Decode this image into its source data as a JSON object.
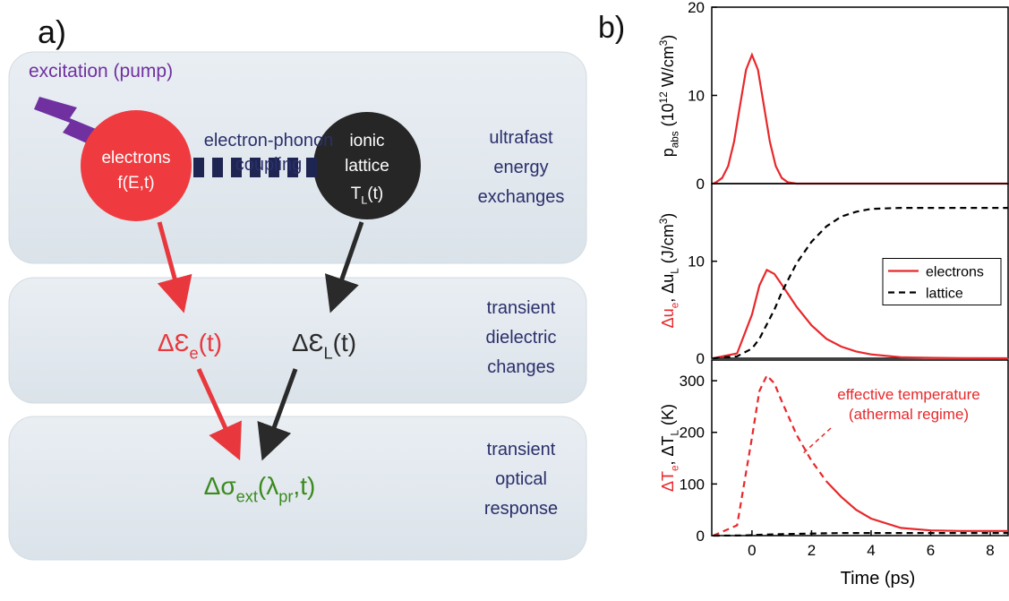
{
  "diagram": {
    "label": "a)",
    "excitation": "excitation (pump)",
    "coupling": [
      "electron-phonon",
      "coupling"
    ],
    "electrons": [
      "electrons",
      "f(E,t)"
    ],
    "lattice": [
      "ionic",
      "lattice"
    ],
    "lattice_temp": [
      {
        "t": "T"
      },
      {
        "t": "L",
        "sub": true
      },
      {
        "t": "(t)"
      }
    ],
    "rows": [
      [
        "ultrafast",
        "energy",
        "exchanges"
      ],
      [
        "transient",
        "dielectric",
        "changes"
      ],
      [
        "transient",
        "optical",
        "response"
      ]
    ],
    "eps_e": [
      {
        "t": "ΔƐ"
      },
      {
        "t": "e",
        "sub": true
      },
      {
        "t": "(t)"
      }
    ],
    "eps_l": [
      {
        "t": "ΔƐ"
      },
      {
        "t": "L",
        "sub": true
      },
      {
        "t": "(t)"
      }
    ],
    "sigma": [
      {
        "t": "Δσ"
      },
      {
        "t": "ext",
        "sub": true
      },
      {
        "t": "(λ"
      },
      {
        "t": "pr",
        "sub": true
      },
      {
        "t": ",t)"
      }
    ]
  },
  "panel_label": "b)",
  "chart_data": [
    {
      "type": "line",
      "ylabel": [
        {
          "t": "p"
        },
        {
          "t": "abs",
          "sub": true
        },
        {
          "t": " (10"
        },
        {
          "t": "12",
          "sup": true
        },
        {
          "t": " W/cm"
        },
        {
          "t": "3",
          "sup": true
        },
        {
          "t": ")"
        }
      ],
      "x": [
        -1.3,
        -1.2,
        -1,
        -0.8,
        -0.6,
        -0.4,
        -0.2,
        0,
        0.2,
        0.4,
        0.6,
        0.8,
        1,
        1.2,
        1.5,
        8.6
      ],
      "series": [
        {
          "color": "#e8282b",
          "dash": false,
          "values": [
            0,
            0.16,
            0.64,
            1.98,
            4.74,
            8.86,
            12.9,
            14.6,
            12.9,
            8.86,
            4.74,
            1.98,
            0.64,
            0.16,
            0,
            0
          ]
        }
      ],
      "xlim": [
        -1.35,
        8.6
      ],
      "ylim": [
        0,
        20
      ],
      "yticks": [
        0,
        10,
        20
      ]
    },
    {
      "type": "line",
      "ylabel": [
        {
          "t": "Δu",
          "color": "#e8282b"
        },
        {
          "t": "e",
          "sub": true,
          "color": "#e8282b"
        },
        {
          "t": ", Δu"
        },
        {
          "t": "L",
          "sub": true
        },
        {
          "t": " (J/cm"
        },
        {
          "t": "3",
          "sup": true
        },
        {
          "t": ")"
        }
      ],
      "x": [
        -1.3,
        -0.5,
        0,
        0.25,
        0.5,
        0.75,
        1,
        1.5,
        2,
        2.5,
        3,
        3.5,
        4,
        5,
        6,
        7,
        8.6
      ],
      "series": [
        {
          "name": "electrons",
          "color": "#e8282b",
          "dash": false,
          "values": [
            0,
            0.5,
            4.5,
            7.5,
            9.1,
            8.7,
            7.6,
            5.3,
            3.4,
            2.0,
            1.2,
            0.7,
            0.4,
            0.1,
            0.05,
            0.02,
            0
          ]
        },
        {
          "name": "lattice",
          "color": "#000000",
          "dash": true,
          "values": [
            0,
            0.2,
            1.0,
            2.0,
            3.5,
            5.0,
            6.8,
            9.8,
            12.0,
            13.6,
            14.6,
            15.1,
            15.4,
            15.5,
            15.5,
            15.5,
            15.5
          ]
        }
      ],
      "legend": "center right",
      "xlim": [
        -1.35,
        8.6
      ],
      "ylim": [
        0,
        18
      ],
      "yticks": [
        0,
        10
      ]
    },
    {
      "type": "line",
      "ylabel": [
        {
          "t": "ΔT",
          "color": "#e8282b"
        },
        {
          "t": "e",
          "sub": true,
          "color": "#e8282b"
        },
        {
          "t": ", ΔT"
        },
        {
          "t": "L",
          "sub": true
        },
        {
          "t": "  (K)"
        }
      ],
      "xlabel": "Time (ps)",
      "annotation": [
        "effective temperature",
        "(athermal regime)"
      ],
      "x": [
        -1.3,
        -0.5,
        0,
        0.25,
        0.5,
        0.75,
        1,
        1.5,
        2,
        2.5,
        3,
        3.5,
        4,
        5,
        6,
        7,
        8.6
      ],
      "series": [
        {
          "color": "#e8282b",
          "dash": true,
          "values": [
            0,
            20,
            190,
            280,
            310,
            295,
            260,
            195,
            145,
            105,
            null,
            null,
            null,
            null,
            null,
            null,
            null
          ]
        },
        {
          "color": "#e8282b",
          "dash": false,
          "values": [
            null,
            null,
            null,
            null,
            null,
            null,
            null,
            null,
            null,
            105,
            75,
            50,
            33,
            15,
            10,
            9,
            9
          ]
        },
        {
          "color": "#000000",
          "dash": true,
          "values": [
            0,
            0.2,
            0.8,
            1.5,
            2,
            2.5,
            3,
            3.5,
            4,
            4.5,
            5,
            5,
            5,
            5,
            5,
            5,
            5
          ]
        }
      ],
      "xlim": [
        -1.35,
        8.6
      ],
      "ylim": [
        0,
        340
      ],
      "xticks": [
        0,
        2,
        4,
        6,
        8
      ],
      "yticks": [
        0,
        100,
        200,
        300
      ]
    }
  ]
}
